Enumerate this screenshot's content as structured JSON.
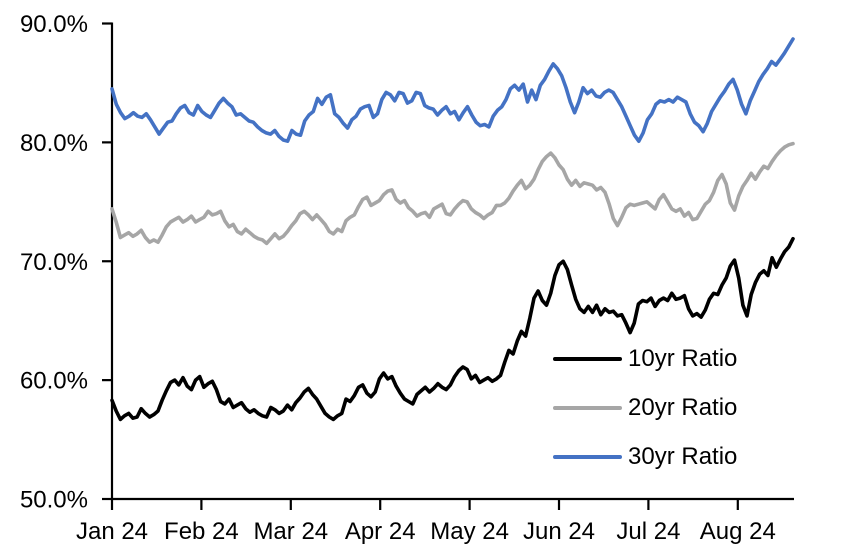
{
  "chart_data": {
    "type": "line",
    "title": "",
    "grid": false,
    "background_color": "#ffffff",
    "axis_color": "#000000",
    "legend": {
      "position": "inside-lower-right",
      "entries": [
        "10yr Ratio",
        "20yr Ratio",
        "30yr Ratio"
      ]
    },
    "x_axis": {
      "label": "",
      "tick_labels": [
        "Jan 24",
        "Feb 24",
        "Mar 24",
        "Apr 24",
        "May 24",
        "Jun 24",
        "Jul 24",
        "Aug 24"
      ],
      "note": "daily series from Jan 2024 through ~Aug 20 2024"
    },
    "y_axis": {
      "label": "",
      "unit": "percent",
      "min": 50,
      "max": 90,
      "tick_values": [
        90,
        80,
        70,
        60,
        50
      ],
      "tick_labels": [
        "90.0%",
        "80.0%",
        "70.0%",
        "60.0%",
        "50.0%"
      ]
    },
    "series": [
      {
        "name": "10yr Ratio",
        "color": "#000000",
        "values": [
          58.3,
          57.4,
          56.7,
          57.0,
          57.2,
          56.8,
          56.9,
          57.6,
          57.2,
          56.9,
          57.1,
          57.4,
          58.3,
          59.1,
          59.8,
          60.0,
          59.6,
          60.2,
          59.5,
          59.2,
          60.0,
          60.3,
          59.4,
          59.7,
          59.9,
          59.2,
          58.2,
          58.0,
          58.4,
          57.7,
          57.9,
          58.1,
          57.6,
          57.3,
          57.5,
          57.2,
          57.0,
          56.9,
          57.7,
          57.5,
          57.2,
          57.4,
          57.9,
          57.5,
          58.1,
          58.5,
          59.0,
          59.3,
          58.8,
          58.4,
          57.8,
          57.2,
          56.9,
          56.7,
          57.0,
          57.2,
          58.4,
          58.2,
          58.7,
          59.4,
          59.6,
          58.9,
          58.6,
          59.0,
          60.1,
          60.6,
          60.1,
          60.3,
          59.5,
          58.9,
          58.4,
          58.2,
          58.0,
          58.8,
          59.1,
          59.4,
          59.0,
          59.3,
          59.7,
          59.4,
          59.2,
          59.6,
          60.3,
          60.8,
          61.1,
          60.9,
          60.1,
          60.4,
          59.8,
          60.0,
          60.2,
          59.9,
          60.1,
          60.4,
          61.5,
          62.5,
          62.2,
          63.3,
          64.1,
          63.7,
          65.2,
          66.9,
          67.5,
          66.7,
          66.3,
          67.3,
          68.8,
          69.7,
          70.0,
          69.3,
          68.0,
          66.8,
          66.0,
          65.7,
          66.2,
          65.7,
          66.3,
          65.5,
          66.0,
          65.7,
          65.8,
          65.4,
          65.5,
          64.8,
          64.0,
          64.8,
          66.4,
          66.7,
          66.6,
          66.9,
          66.2,
          66.7,
          66.9,
          66.7,
          67.3,
          66.8,
          66.9,
          67.1,
          66.0,
          65.4,
          65.6,
          65.3,
          65.9,
          66.8,
          67.3,
          67.2,
          68.0,
          68.6,
          69.6,
          70.1,
          68.6,
          66.3,
          65.4,
          67.2,
          68.2,
          68.9,
          69.2,
          68.8,
          70.3,
          69.5,
          70.2,
          70.8,
          71.2,
          71.9
        ]
      },
      {
        "name": "20yr Ratio",
        "color": "#a6a6a6",
        "values": [
          74.4,
          73.3,
          72.0,
          72.2,
          72.4,
          72.1,
          72.3,
          72.6,
          72.0,
          71.6,
          71.8,
          71.6,
          72.2,
          72.9,
          73.3,
          73.5,
          73.7,
          73.3,
          73.5,
          73.8,
          73.3,
          73.5,
          73.7,
          74.2,
          73.9,
          74.0,
          74.2,
          73.4,
          72.9,
          73.1,
          72.5,
          72.3,
          72.7,
          72.4,
          72.1,
          71.9,
          71.8,
          71.5,
          71.9,
          72.3,
          71.9,
          72.1,
          72.5,
          73.0,
          73.4,
          74.0,
          74.2,
          73.9,
          73.5,
          73.9,
          73.5,
          73.1,
          72.5,
          72.3,
          72.7,
          72.5,
          73.4,
          73.7,
          73.9,
          74.6,
          75.2,
          75.4,
          74.7,
          74.9,
          75.1,
          75.6,
          75.9,
          76.0,
          75.2,
          74.9,
          75.1,
          74.5,
          74.2,
          73.8,
          74.0,
          74.1,
          73.7,
          74.4,
          74.6,
          74.8,
          74.0,
          73.9,
          74.4,
          74.8,
          75.1,
          75.0,
          74.4,
          74.1,
          73.9,
          73.6,
          73.9,
          74.1,
          74.7,
          74.7,
          74.9,
          75.3,
          75.9,
          76.4,
          76.8,
          76.1,
          76.4,
          76.9,
          77.7,
          78.4,
          78.8,
          79.1,
          78.7,
          78.1,
          77.7,
          76.9,
          76.4,
          76.8,
          76.3,
          76.6,
          76.5,
          76.4,
          76.0,
          76.2,
          75.8,
          74.8,
          73.6,
          73.0,
          73.7,
          74.5,
          74.8,
          74.7,
          74.8,
          74.9,
          75.0,
          74.7,
          74.4,
          75.2,
          75.6,
          75.0,
          74.4,
          74.2,
          74.4,
          73.8,
          74.1,
          73.5,
          73.6,
          74.2,
          74.8,
          75.1,
          75.8,
          76.8,
          77.3,
          76.5,
          74.9,
          74.3,
          75.5,
          76.3,
          76.8,
          77.4,
          76.9,
          77.5,
          78.0,
          77.8,
          78.4,
          78.9,
          79.3,
          79.6,
          79.8,
          79.9
        ]
      },
      {
        "name": "30yr Ratio",
        "color": "#4472c4",
        "values": [
          84.5,
          83.2,
          82.5,
          82.0,
          82.2,
          82.5,
          82.2,
          82.1,
          82.4,
          81.9,
          81.3,
          80.7,
          81.2,
          81.7,
          81.8,
          82.4,
          82.9,
          83.1,
          82.5,
          82.3,
          83.1,
          82.6,
          82.3,
          82.1,
          82.7,
          83.3,
          83.7,
          83.3,
          83.0,
          82.3,
          82.4,
          82.1,
          81.8,
          81.7,
          81.3,
          81.0,
          80.8,
          80.7,
          81.0,
          80.5,
          80.2,
          80.1,
          81.0,
          80.7,
          80.6,
          81.8,
          82.3,
          82.6,
          83.7,
          83.2,
          83.8,
          84.0,
          82.4,
          82.1,
          81.6,
          81.2,
          81.9,
          82.2,
          82.8,
          83.0,
          83.1,
          82.1,
          82.4,
          83.6,
          84.2,
          84.0,
          83.5,
          84.2,
          84.1,
          83.3,
          83.5,
          84.2,
          84.1,
          83.1,
          82.9,
          82.8,
          82.3,
          82.7,
          83.0,
          82.4,
          82.6,
          81.9,
          82.5,
          83.0,
          82.3,
          81.7,
          81.4,
          81.5,
          81.3,
          82.2,
          82.7,
          83.0,
          83.6,
          84.5,
          84.8,
          84.4,
          84.9,
          83.4,
          84.4,
          83.6,
          84.8,
          85.3,
          86.0,
          86.6,
          86.2,
          85.6,
          84.6,
          83.4,
          82.5,
          83.4,
          84.6,
          84.1,
          84.4,
          83.9,
          83.8,
          84.2,
          84.4,
          84.2,
          83.6,
          83.0,
          82.2,
          81.4,
          80.6,
          80.1,
          80.8,
          81.9,
          82.4,
          83.2,
          83.5,
          83.4,
          83.6,
          83.4,
          83.8,
          83.6,
          83.4,
          82.4,
          81.7,
          81.4,
          80.9,
          81.6,
          82.6,
          83.2,
          83.8,
          84.3,
          84.9,
          85.3,
          84.4,
          83.2,
          82.4,
          83.5,
          84.3,
          85.1,
          85.7,
          86.2,
          86.8,
          86.5,
          87.0,
          87.5,
          88.1,
          88.7
        ]
      }
    ]
  }
}
